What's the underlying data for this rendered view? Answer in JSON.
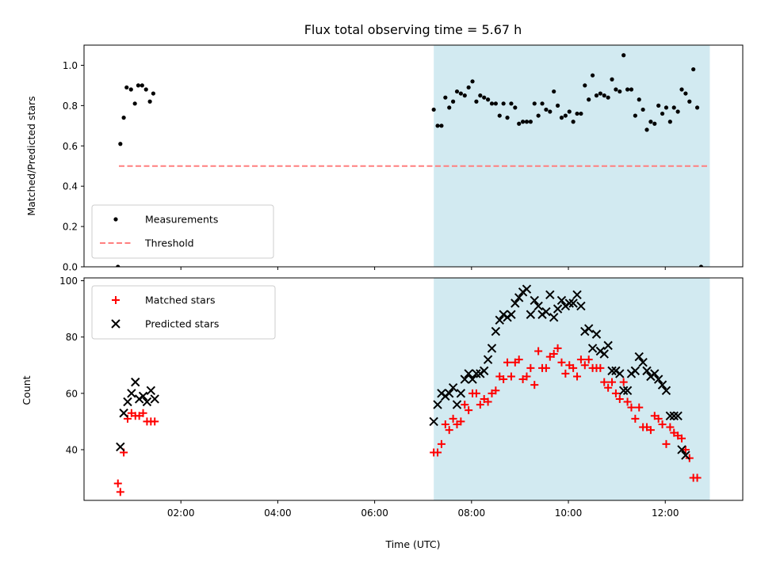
{
  "chart_data": {
    "type": "scatter",
    "title": "Flux total observing time = 5.67 h",
    "xlabel": "Time (UTC)",
    "x_unit": "hours UTC",
    "xlim": [
      0.0,
      13.6
    ],
    "xticks": [
      2,
      4,
      6,
      8,
      10,
      12
    ],
    "xtick_labels": [
      "02:00",
      "04:00",
      "06:00",
      "08:00",
      "10:00",
      "12:00"
    ],
    "highlight_span": [
      7.22,
      12.92
    ],
    "highlight_color": "#add8e6",
    "panels": [
      {
        "ylabel": "Matched/Predicted stars",
        "ylim": [
          0,
          1.1
        ],
        "yticks": [
          0.0,
          0.2,
          0.4,
          0.6,
          0.8,
          1.0
        ],
        "ytick_labels": [
          "0.0",
          "0.2",
          "0.4",
          "0.6",
          "0.8",
          "1.0"
        ],
        "legend": [
          "Measurements",
          "Threshold"
        ],
        "series": [
          {
            "name": "Measurements",
            "marker": "dot",
            "color": "#000000",
            "points": [
              [
                0.7,
                0.0
              ],
              [
                0.75,
                0.61
              ],
              [
                0.82,
                0.74
              ],
              [
                0.88,
                0.89
              ],
              [
                0.97,
                0.88
              ],
              [
                1.05,
                0.81
              ],
              [
                1.12,
                0.9
              ],
              [
                1.2,
                0.9
              ],
              [
                1.28,
                0.88
              ],
              [
                1.36,
                0.82
              ],
              [
                1.43,
                0.86
              ],
              [
                7.22,
                0.78
              ],
              [
                7.3,
                0.7
              ],
              [
                7.38,
                0.7
              ],
              [
                7.46,
                0.84
              ],
              [
                7.54,
                0.79
              ],
              [
                7.62,
                0.82
              ],
              [
                7.7,
                0.87
              ],
              [
                7.78,
                0.86
              ],
              [
                7.86,
                0.85
              ],
              [
                7.94,
                0.89
              ],
              [
                8.02,
                0.92
              ],
              [
                8.1,
                0.82
              ],
              [
                8.18,
                0.85
              ],
              [
                8.26,
                0.84
              ],
              [
                8.34,
                0.83
              ],
              [
                8.42,
                0.81
              ],
              [
                8.5,
                0.81
              ],
              [
                8.58,
                0.75
              ],
              [
                8.66,
                0.81
              ],
              [
                8.74,
                0.74
              ],
              [
                8.82,
                0.81
              ],
              [
                8.9,
                0.79
              ],
              [
                8.98,
                0.71
              ],
              [
                9.06,
                0.72
              ],
              [
                9.14,
                0.72
              ],
              [
                9.22,
                0.72
              ],
              [
                9.3,
                0.81
              ],
              [
                9.38,
                0.75
              ],
              [
                9.46,
                0.81
              ],
              [
                9.54,
                0.78
              ],
              [
                9.62,
                0.77
              ],
              [
                9.7,
                0.87
              ],
              [
                9.78,
                0.8
              ],
              [
                9.86,
                0.74
              ],
              [
                9.94,
                0.75
              ],
              [
                10.02,
                0.77
              ],
              [
                10.1,
                0.72
              ],
              [
                10.18,
                0.76
              ],
              [
                10.26,
                0.76
              ],
              [
                10.34,
                0.9
              ],
              [
                10.42,
                0.83
              ],
              [
                10.5,
                0.95
              ],
              [
                10.58,
                0.85
              ],
              [
                10.66,
                0.86
              ],
              [
                10.74,
                0.85
              ],
              [
                10.82,
                0.84
              ],
              [
                10.9,
                0.93
              ],
              [
                10.98,
                0.88
              ],
              [
                11.06,
                0.87
              ],
              [
                11.14,
                1.05
              ],
              [
                11.22,
                0.88
              ],
              [
                11.3,
                0.88
              ],
              [
                11.38,
                0.75
              ],
              [
                11.46,
                0.83
              ],
              [
                11.54,
                0.78
              ],
              [
                11.62,
                0.68
              ],
              [
                11.7,
                0.72
              ],
              [
                11.78,
                0.71
              ],
              [
                11.86,
                0.8
              ],
              [
                11.94,
                0.76
              ],
              [
                12.02,
                0.79
              ],
              [
                12.1,
                0.72
              ],
              [
                12.18,
                0.79
              ],
              [
                12.26,
                0.77
              ],
              [
                12.34,
                0.88
              ],
              [
                12.42,
                0.86
              ],
              [
                12.5,
                0.82
              ],
              [
                12.58,
                0.98
              ],
              [
                12.66,
                0.79
              ],
              [
                12.74,
                0.0
              ]
            ]
          },
          {
            "name": "Threshold",
            "style": "dashed",
            "color": "#ff7f7f",
            "line": [
              [
                0.72,
                0.5
              ],
              [
                12.92,
                0.5
              ]
            ]
          }
        ]
      },
      {
        "ylabel": "Count",
        "ylim": [
          22,
          101
        ],
        "yticks": [
          40,
          60,
          80,
          100
        ],
        "ytick_labels": [
          "40",
          "60",
          "80",
          "100"
        ],
        "legend": [
          "Matched stars",
          "Predicted stars"
        ],
        "series": [
          {
            "name": "Matched stars",
            "marker": "plus",
            "color": "#ff0000",
            "points": [
              [
                0.7,
                28
              ],
              [
                0.75,
                25
              ],
              [
                0.82,
                39
              ],
              [
                0.9,
                51
              ],
              [
                0.98,
                53
              ],
              [
                1.06,
                52
              ],
              [
                1.14,
                52
              ],
              [
                1.22,
                53
              ],
              [
                1.3,
                50
              ],
              [
                1.38,
                50
              ],
              [
                1.46,
                50
              ],
              [
                7.22,
                39
              ],
              [
                7.3,
                39
              ],
              [
                7.38,
                42
              ],
              [
                7.46,
                49
              ],
              [
                7.54,
                47
              ],
              [
                7.62,
                51
              ],
              [
                7.7,
                49
              ],
              [
                7.78,
                50
              ],
              [
                7.86,
                56
              ],
              [
                7.94,
                54
              ],
              [
                8.02,
                60
              ],
              [
                8.1,
                60
              ],
              [
                8.18,
                56
              ],
              [
                8.26,
                58
              ],
              [
                8.34,
                57
              ],
              [
                8.42,
                60
              ],
              [
                8.5,
                61
              ],
              [
                8.58,
                66
              ],
              [
                8.66,
                65
              ],
              [
                8.74,
                71
              ],
              [
                8.82,
                66
              ],
              [
                8.9,
                71
              ],
              [
                8.98,
                72
              ],
              [
                9.06,
                65
              ],
              [
                9.14,
                66
              ],
              [
                9.22,
                69
              ],
              [
                9.3,
                63
              ],
              [
                9.38,
                75
              ],
              [
                9.46,
                69
              ],
              [
                9.54,
                69
              ],
              [
                9.62,
                73
              ],
              [
                9.7,
                74
              ],
              [
                9.78,
                76
              ],
              [
                9.86,
                71
              ],
              [
                9.94,
                67
              ],
              [
                10.02,
                70
              ],
              [
                10.1,
                69
              ],
              [
                10.18,
                66
              ],
              [
                10.26,
                72
              ],
              [
                10.34,
                70
              ],
              [
                10.42,
                72
              ],
              [
                10.5,
                69
              ],
              [
                10.58,
                69
              ],
              [
                10.66,
                69
              ],
              [
                10.74,
                64
              ],
              [
                10.82,
                62
              ],
              [
                10.9,
                64
              ],
              [
                10.98,
                60
              ],
              [
                11.06,
                58
              ],
              [
                11.14,
                64
              ],
              [
                11.22,
                57
              ],
              [
                11.3,
                55
              ],
              [
                11.38,
                51
              ],
              [
                11.46,
                55
              ],
              [
                11.54,
                48
              ],
              [
                11.62,
                48
              ],
              [
                11.7,
                47
              ],
              [
                11.78,
                52
              ],
              [
                11.86,
                51
              ],
              [
                11.94,
                49
              ],
              [
                12.02,
                42
              ],
              [
                12.1,
                48
              ],
              [
                12.18,
                46
              ],
              [
                12.26,
                45
              ],
              [
                12.34,
                44
              ],
              [
                12.42,
                40
              ],
              [
                12.5,
                37
              ],
              [
                12.58,
                30
              ],
              [
                12.66,
                30
              ]
            ]
          },
          {
            "name": "Predicted stars",
            "marker": "x",
            "color": "#000000",
            "points": [
              [
                0.75,
                41
              ],
              [
                0.82,
                53
              ],
              [
                0.9,
                57
              ],
              [
                0.98,
                60
              ],
              [
                1.06,
                64
              ],
              [
                1.14,
                58
              ],
              [
                1.22,
                59
              ],
              [
                1.3,
                57
              ],
              [
                1.38,
                61
              ],
              [
                1.46,
                58
              ],
              [
                7.22,
                50
              ],
              [
                7.3,
                56
              ],
              [
                7.38,
                60
              ],
              [
                7.46,
                59
              ],
              [
                7.54,
                60
              ],
              [
                7.62,
                62
              ],
              [
                7.7,
                56
              ],
              [
                7.78,
                60
              ],
              [
                7.86,
                65
              ],
              [
                7.94,
                67
              ],
              [
                8.02,
                65
              ],
              [
                8.1,
                67
              ],
              [
                8.18,
                67
              ],
              [
                8.26,
                68
              ],
              [
                8.34,
                72
              ],
              [
                8.42,
                76
              ],
              [
                8.5,
                82
              ],
              [
                8.58,
                86
              ],
              [
                8.66,
                88
              ],
              [
                8.74,
                87
              ],
              [
                8.82,
                88
              ],
              [
                8.9,
                92
              ],
              [
                8.98,
                94
              ],
              [
                9.06,
                96
              ],
              [
                9.14,
                97
              ],
              [
                9.22,
                88
              ],
              [
                9.3,
                93
              ],
              [
                9.38,
                91
              ],
              [
                9.46,
                88
              ],
              [
                9.54,
                89
              ],
              [
                9.62,
                95
              ],
              [
                9.7,
                87
              ],
              [
                9.78,
                90
              ],
              [
                9.86,
                93
              ],
              [
                9.94,
                91
              ],
              [
                10.02,
                92
              ],
              [
                10.1,
                92
              ],
              [
                10.18,
                95
              ],
              [
                10.26,
                91
              ],
              [
                10.34,
                82
              ],
              [
                10.42,
                83
              ],
              [
                10.5,
                76
              ],
              [
                10.58,
                81
              ],
              [
                10.66,
                75
              ],
              [
                10.74,
                74
              ],
              [
                10.82,
                77
              ],
              [
                10.9,
                68
              ],
              [
                10.98,
                68
              ],
              [
                11.06,
                67
              ],
              [
                11.14,
                61
              ],
              [
                11.22,
                61
              ],
              [
                11.3,
                67
              ],
              [
                11.38,
                68
              ],
              [
                11.46,
                73
              ],
              [
                11.54,
                71
              ],
              [
                11.62,
                68
              ],
              [
                11.7,
                66
              ],
              [
                11.78,
                67
              ],
              [
                11.86,
                65
              ],
              [
                11.94,
                63
              ],
              [
                12.02,
                61
              ],
              [
                12.1,
                52
              ],
              [
                12.18,
                52
              ],
              [
                12.26,
                52
              ],
              [
                12.34,
                40
              ],
              [
                12.42,
                38
              ]
            ]
          }
        ]
      }
    ]
  }
}
